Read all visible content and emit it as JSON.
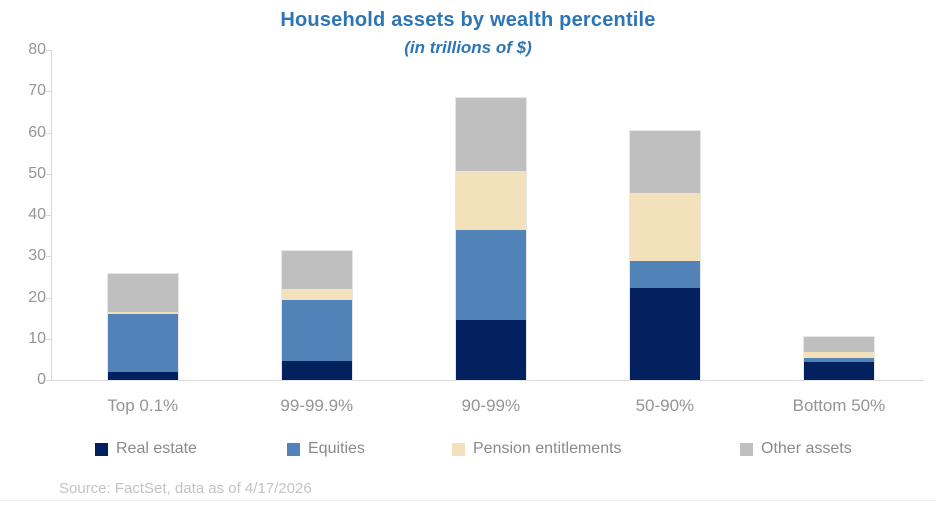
{
  "title": "Household assets by wealth percentile",
  "subtitle": "(in trillions of $)",
  "source": "Source: FactSet, data as of 4/17/2026",
  "colors": {
    "title_blue": "#2e75b6",
    "axis_line": "#d9d9d9",
    "axis_label_gray": "#959595",
    "legend_label_gray": "#8a8a8a",
    "source_gray": "#c3c3c3"
  },
  "chart_data": {
    "type": "bar",
    "stacked": true,
    "title": "Household assets by wealth percentile",
    "subtitle": "(in trillions of $)",
    "xlabel": "",
    "ylabel": "",
    "categories": [
      "Top 0.1%",
      "99-99.9%",
      "90-99%",
      "50-90%",
      "Bottom 50%"
    ],
    "series": [
      {
        "name": "Real estate",
        "color": "#03205f",
        "values": [
          2.0,
          4.5,
          14.5,
          22.4,
          4.4
        ]
      },
      {
        "name": "Equities",
        "color": "#5183b8",
        "values": [
          14.0,
          15.0,
          21.9,
          6.5,
          1.0
        ]
      },
      {
        "name": "Pension entitlements",
        "color": "#f2e1ba",
        "values": [
          0.5,
          2.6,
          14.3,
          16.4,
          1.5
        ]
      },
      {
        "name": "Other assets",
        "color": "#bfbfbf",
        "values": [
          9.2,
          9.2,
          17.6,
          15.1,
          3.6
        ]
      }
    ],
    "totals": [
      25.7,
      31.3,
      68.3,
      60.4,
      10.5
    ],
    "ylim": [
      0,
      80
    ],
    "yticks": [
      0,
      10,
      20,
      30,
      40,
      50,
      60,
      70,
      80
    ],
    "grid": false,
    "legend_position": "bottom"
  }
}
